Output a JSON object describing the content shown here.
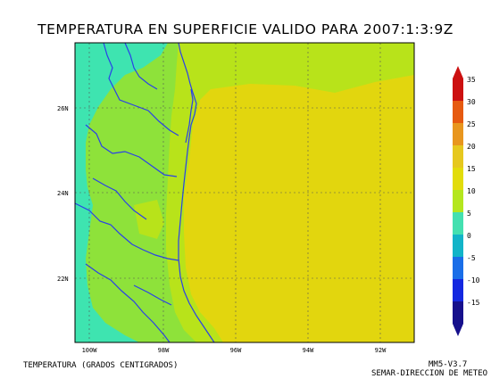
{
  "title": "TEMPERATURA EN SUPERFICIE VALIDO PARA 2007:1:3:9Z",
  "footer": {
    "left": "TEMPERATURA (GRADOS CENTIGRADOS)",
    "right_line1": "MM5-V3.7",
    "right_line2": "SEMAR-DIRECCION DE METEO"
  },
  "map": {
    "lat_labels": [
      "26N",
      "24N",
      "22N"
    ],
    "lon_labels": [
      "100W",
      "98W",
      "96W",
      "94W",
      "92W"
    ]
  },
  "colorbar": {
    "labels": [
      "35",
      "30",
      "25",
      "20",
      "15",
      "10",
      "5",
      "0",
      "-5",
      "-10",
      "-15"
    ],
    "colors": [
      "#cc1010",
      "#e65a10",
      "#e8961e",
      "#e6c81e",
      "#e2dc0a",
      "#b4e61e",
      "#44e0b0",
      "#12b4c8",
      "#1a6ee8",
      "#1428e0",
      "#16108c"
    ]
  },
  "colors": {
    "field_20_25": "#e2d60e",
    "field_15_20": "#b8e31a",
    "field_10_15": "#8ee23a",
    "field_5_10": "#3ee4b0",
    "coast_lines": "#2a40e8",
    "grid_lines": "#555555"
  }
}
